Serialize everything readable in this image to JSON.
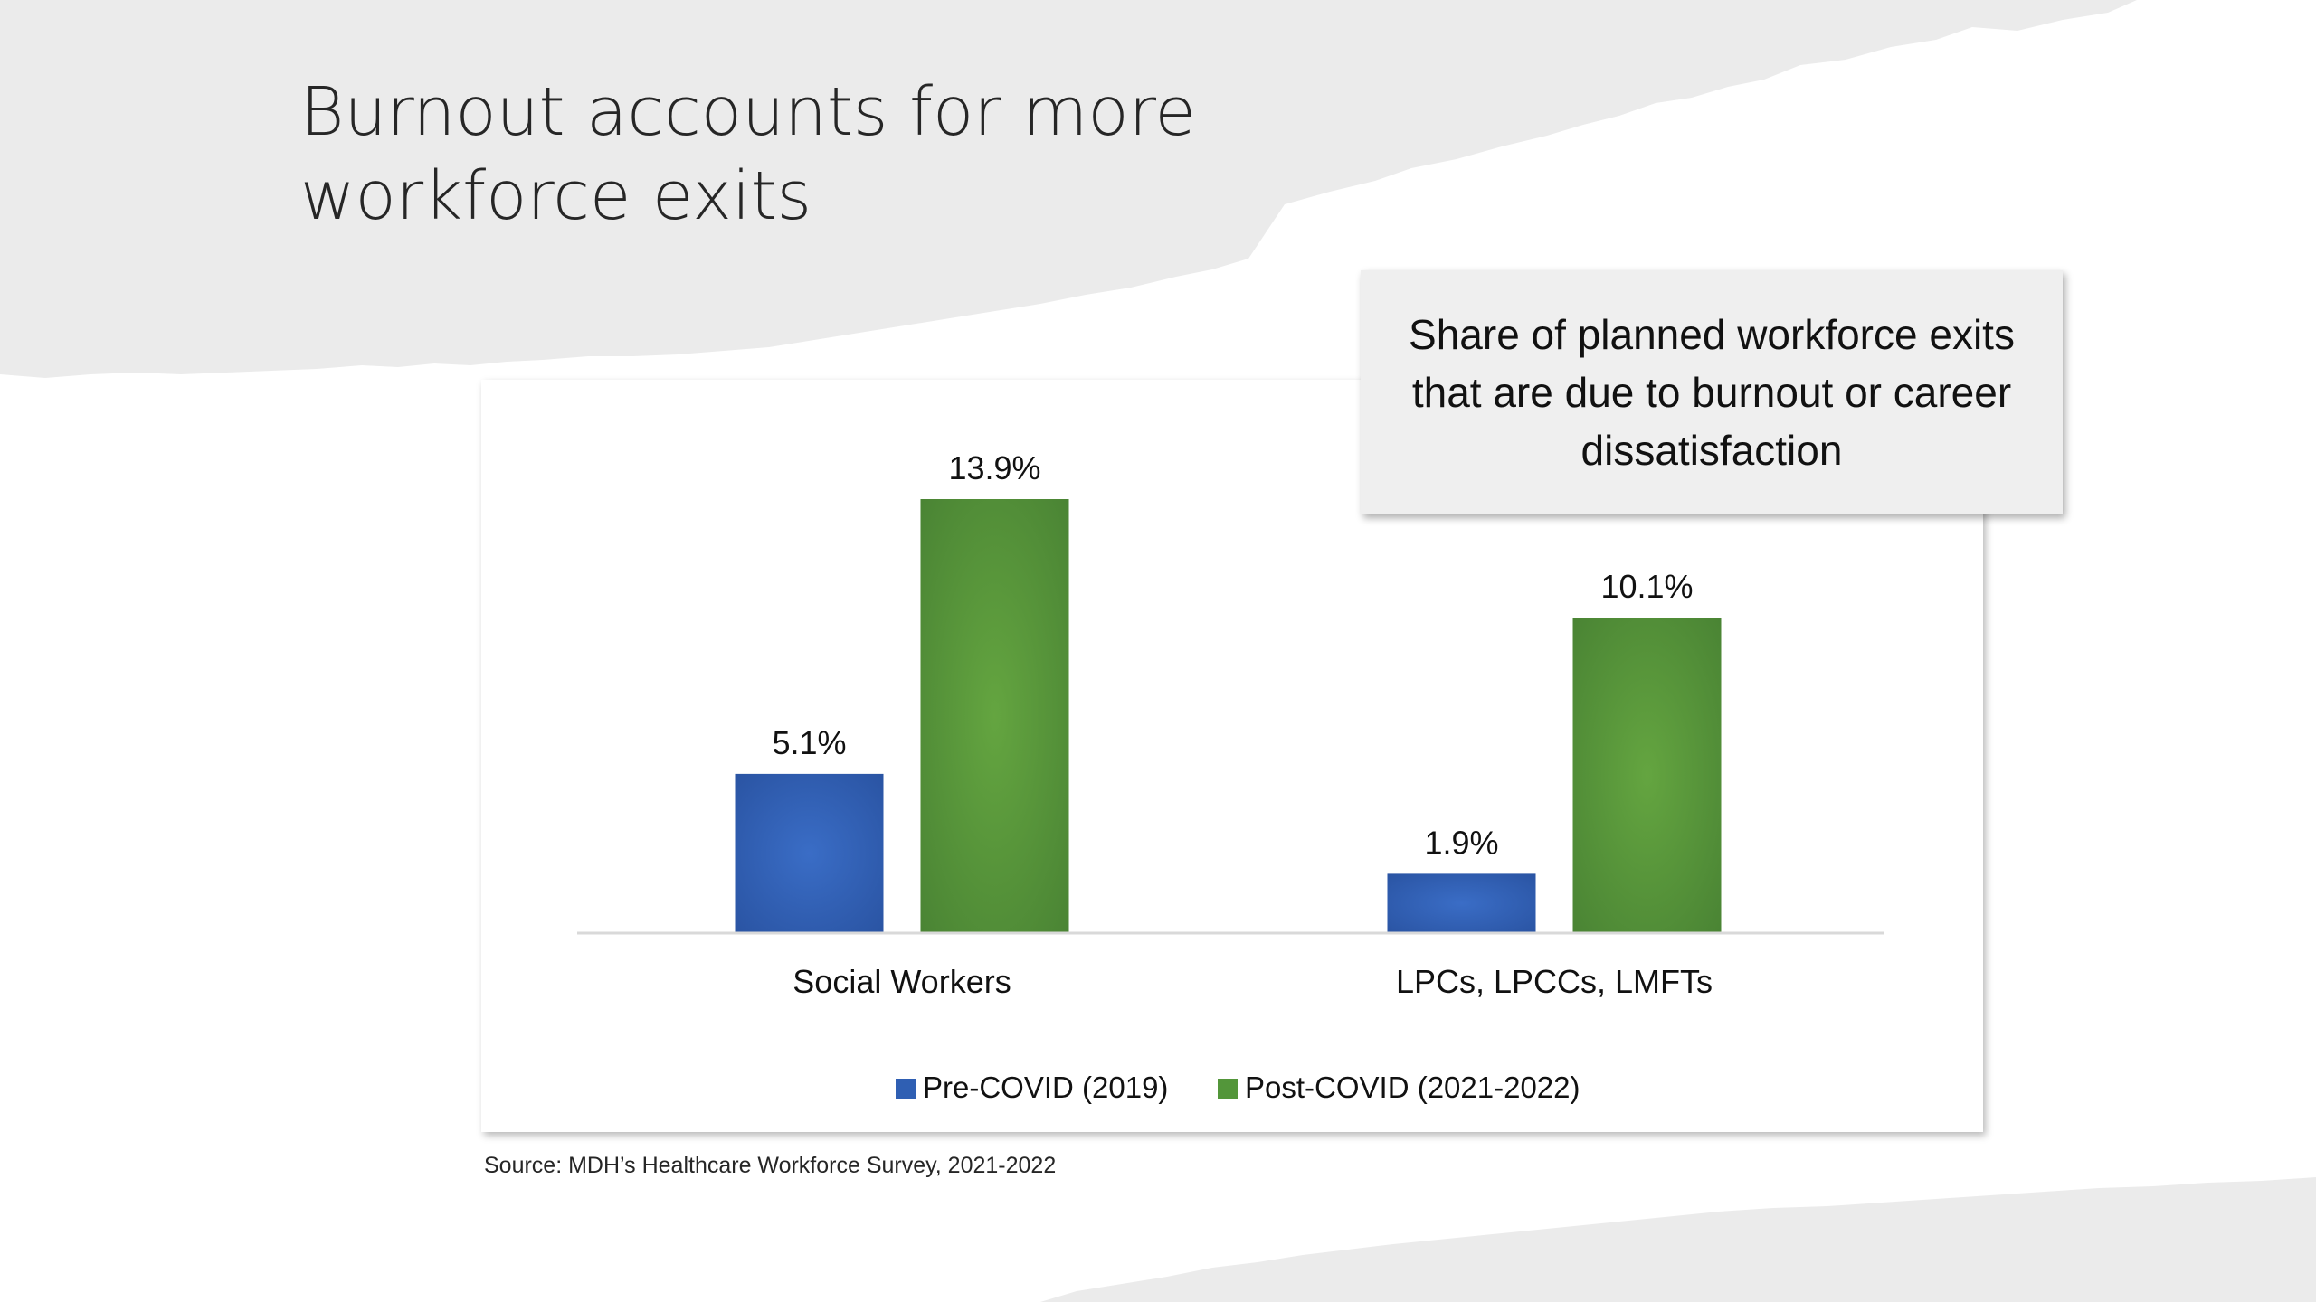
{
  "slide": {
    "title_lines": [
      "Burnout accounts for more",
      "workforce exits"
    ],
    "callout": "Share of planned workforce exits that are due to burnout or career dissatisfaction",
    "source": "Source: MDH’s Healthcare Workforce Survey, 2021-2022",
    "colors": {
      "background_torn_band": "#ebebeb",
      "card": "#ffffff",
      "callout": "#efefef"
    }
  },
  "chart_data": {
    "type": "bar",
    "categories": [
      "Social Workers",
      "LPCs, LPCCs, LMFTs"
    ],
    "series": [
      {
        "name": "Pre-COVID (2019)",
        "values": [
          5.1,
          1.9
        ],
        "labels": [
          "5.1%",
          "1.9%"
        ],
        "color": "#2f5fb3"
      },
      {
        "name": "Post-COVID (2021-2022)",
        "values": [
          13.9,
          10.1
        ],
        "labels": [
          "13.9%",
          "10.1%"
        ],
        "color": "#53963a"
      }
    ],
    "ylim": [
      0,
      13.9
    ],
    "grid": false,
    "y_axis_visible": false,
    "legend": "bottom-center"
  }
}
